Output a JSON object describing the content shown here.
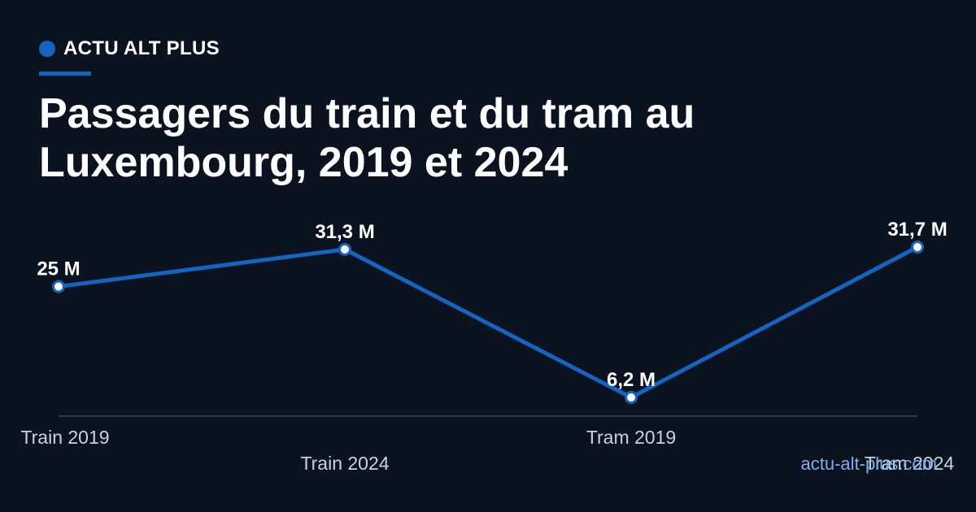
{
  "brand": {
    "name": "ACTU ALT PLUS",
    "accent": "#1565c0"
  },
  "title": "Passagers du train et du tram au Luxembourg, 2019 et 2024",
  "footer": {
    "source": "actu-alt-plus.com"
  },
  "colors": {
    "background": "#0b1320",
    "line": "#1565c0",
    "text": "#ffffff",
    "tick": "#c8d2e0",
    "axis": "#3a4455"
  },
  "chart_data": {
    "type": "line",
    "categories": [
      "Train 2019",
      "Train 2024",
      "Tram 2019",
      "Tram 2024"
    ],
    "values": [
      25,
      31.3,
      6.2,
      31.7
    ],
    "data_labels": [
      "25 M",
      "31,3 M",
      "6,2 M",
      "31,7 M"
    ],
    "unit": "M",
    "title": "Passagers du train et du tram au Luxembourg, 2019 et 2024",
    "xlabel": "",
    "ylabel": "",
    "ylim": [
      0,
      31.7
    ],
    "grid": false,
    "legend": "none"
  }
}
